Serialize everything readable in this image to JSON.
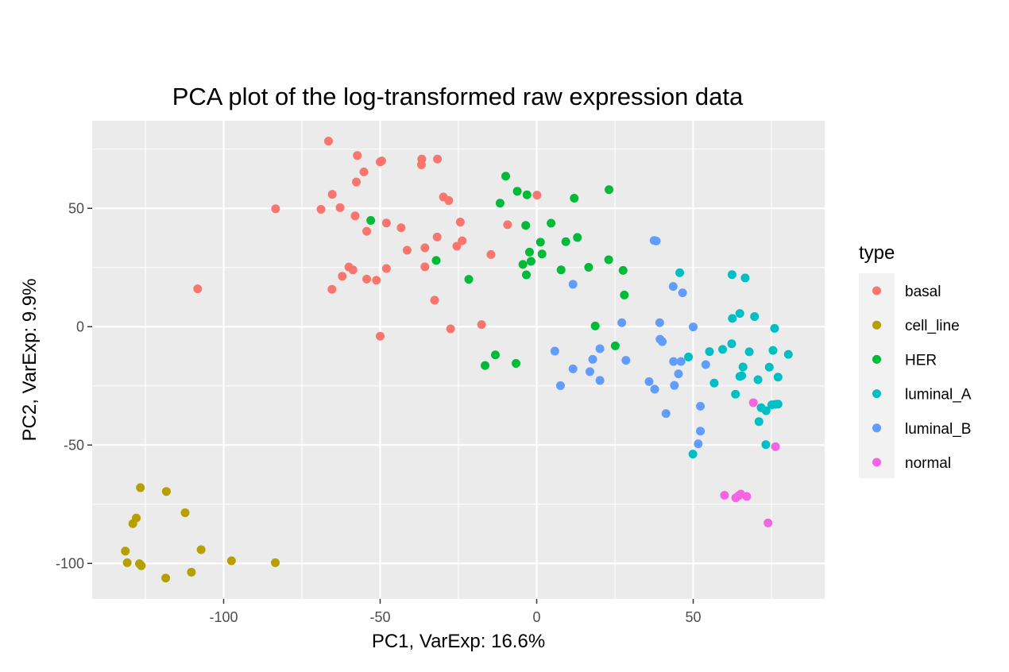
{
  "chart_data": {
    "type": "scatter",
    "title": "PCA plot of the log-transformed raw expression data",
    "xlabel": "PC1, VarExp: 16.6%",
    "ylabel": "PC2, VarExp: 9.9%",
    "xlim": [
      -142,
      92
    ],
    "ylim": [
      -115,
      87
    ],
    "x_ticks": [
      {
        "value": -100,
        "label": "-100"
      },
      {
        "value": -50,
        "label": "-50"
      },
      {
        "value": 0,
        "label": "0"
      },
      {
        "value": 50,
        "label": "50"
      }
    ],
    "y_ticks": [
      {
        "value": -100,
        "label": "-100"
      },
      {
        "value": -50,
        "label": "-50"
      },
      {
        "value": 0,
        "label": "0"
      },
      {
        "value": 50,
        "label": "50"
      }
    ],
    "grid": true,
    "legend": {
      "title": "type",
      "position": "right"
    },
    "series": [
      {
        "name": "basal",
        "color": "#F8766D",
        "points": [
          [
            -66.5,
            78.4
          ],
          [
            -57.3,
            72.3
          ],
          [
            -50.0,
            69.6
          ],
          [
            -49.5,
            70.0
          ],
          [
            -36.7,
            70.8
          ],
          [
            -31.7,
            70.8
          ],
          [
            -36.8,
            68.4
          ],
          [
            -55.2,
            65.4
          ],
          [
            -57.6,
            61.1
          ],
          [
            -65.3,
            55.9
          ],
          [
            -29.8,
            54.8
          ],
          [
            -28.1,
            53.3
          ],
          [
            0.1,
            55.6
          ],
          [
            -83.4,
            49.8
          ],
          [
            -68.9,
            49.6
          ],
          [
            -62.8,
            50.3
          ],
          [
            -58.0,
            46.8
          ],
          [
            -48.0,
            43.8
          ],
          [
            -24.4,
            44.2
          ],
          [
            -9.3,
            43.1
          ],
          [
            -43.3,
            41.8
          ],
          [
            -54.3,
            40.3
          ],
          [
            -31.8,
            37.9
          ],
          [
            -23.8,
            36.3
          ],
          [
            -41.4,
            32.3
          ],
          [
            -35.7,
            33.3
          ],
          [
            -25.5,
            34.0
          ],
          [
            -14.6,
            30.5
          ],
          [
            -35.7,
            25.3
          ],
          [
            -48.0,
            24.6
          ],
          [
            -60.0,
            25.2
          ],
          [
            -58.7,
            24.0
          ],
          [
            -62.1,
            21.3
          ],
          [
            -54.3,
            20.1
          ],
          [
            -51.2,
            19.6
          ],
          [
            -108.3,
            16.0
          ],
          [
            -65.4,
            15.8
          ],
          [
            -32.6,
            11.2
          ],
          [
            -17.6,
            0.9
          ],
          [
            -27.5,
            -0.9
          ],
          [
            -50.0,
            -4.0
          ]
        ]
      },
      {
        "name": "cell_line",
        "color": "#B79F00",
        "points": [
          [
            -126.6,
            -68.0
          ],
          [
            -118.3,
            -69.6
          ],
          [
            -112.3,
            -78.6
          ],
          [
            -127.9,
            -80.8
          ],
          [
            -129.0,
            -83.2
          ],
          [
            -107.2,
            -94.2
          ],
          [
            -131.4,
            -94.8
          ],
          [
            -97.5,
            -98.9
          ],
          [
            -83.5,
            -99.7
          ],
          [
            -130.8,
            -99.7
          ],
          [
            -126.9,
            -100.1
          ],
          [
            -126.3,
            -101.0
          ],
          [
            -110.3,
            -103.7
          ],
          [
            -118.5,
            -106.2
          ]
        ]
      },
      {
        "name": "HER",
        "color": "#00BA38",
        "points": [
          [
            -9.9,
            63.6
          ],
          [
            23.1,
            57.9
          ],
          [
            -6.2,
            57.2
          ],
          [
            -3.1,
            55.7
          ],
          [
            12.0,
            54.3
          ],
          [
            -11.7,
            52.2
          ],
          [
            4.6,
            43.7
          ],
          [
            -3.5,
            42.8
          ],
          [
            13.0,
            37.7
          ],
          [
            1.2,
            35.7
          ],
          [
            9.3,
            35.9
          ],
          [
            -2.3,
            31.5
          ],
          [
            1.7,
            30.7
          ],
          [
            -32.1,
            28.0
          ],
          [
            23.0,
            28.3
          ],
          [
            -1.8,
            27.6
          ],
          [
            -4.4,
            26.3
          ],
          [
            16.6,
            25.1
          ],
          [
            7.8,
            24.0
          ],
          [
            27.6,
            23.8
          ],
          [
            -3.3,
            21.9
          ],
          [
            -21.7,
            20.0
          ],
          [
            -53.0,
            44.9
          ],
          [
            28.0,
            13.4
          ],
          [
            18.7,
            0.3
          ],
          [
            25.1,
            -8.1
          ],
          [
            -13.2,
            -11.9
          ],
          [
            -6.6,
            -15.5
          ],
          [
            -16.5,
            -16.4
          ]
        ]
      },
      {
        "name": "luminal_A",
        "color": "#00BFC4",
        "points": [
          [
            62.4,
            22.0
          ],
          [
            66.6,
            20.6
          ],
          [
            45.7,
            22.8
          ],
          [
            64.9,
            5.6
          ],
          [
            69.6,
            4.3
          ],
          [
            62.5,
            3.5
          ],
          [
            76.0,
            -0.7
          ],
          [
            62.3,
            -7.2
          ],
          [
            59.4,
            -9.6
          ],
          [
            55.2,
            -10.5
          ],
          [
            67.9,
            -10.6
          ],
          [
            75.5,
            -10.0
          ],
          [
            80.4,
            -11.7
          ],
          [
            48.5,
            -12.8
          ],
          [
            65.9,
            -17.0
          ],
          [
            74.3,
            -17.1
          ],
          [
            65.5,
            -20.7
          ],
          [
            64.9,
            -21.0
          ],
          [
            77.1,
            -21.3
          ],
          [
            70.7,
            -22.4
          ],
          [
            56.7,
            -23.8
          ],
          [
            63.5,
            -28.5
          ],
          [
            76.3,
            -32.8
          ],
          [
            75.1,
            -33.0
          ],
          [
            77.1,
            -32.7
          ],
          [
            73.3,
            -35.5
          ],
          [
            71.7,
            -34.2
          ],
          [
            71.0,
            -40.1
          ],
          [
            73.2,
            -49.8
          ],
          [
            49.9,
            -53.8
          ]
        ]
      },
      {
        "name": "luminal_B",
        "color": "#619CFF",
        "points": [
          [
            37.5,
            36.4
          ],
          [
            38.2,
            36.2
          ],
          [
            43.6,
            17.0
          ],
          [
            46.6,
            14.3
          ],
          [
            11.6,
            17.9
          ],
          [
            27.2,
            1.7
          ],
          [
            39.3,
            1.7
          ],
          [
            50.0,
            -0.1
          ],
          [
            39.4,
            -5.3
          ],
          [
            40.1,
            -6.3
          ],
          [
            20.2,
            -9.3
          ],
          [
            5.8,
            -10.3
          ],
          [
            43.7,
            -14.7
          ],
          [
            46.1,
            -14.7
          ],
          [
            28.5,
            -14.2
          ],
          [
            17.9,
            -13.8
          ],
          [
            54.0,
            -16.0
          ],
          [
            11.6,
            -17.8
          ],
          [
            17.0,
            -19.0
          ],
          [
            45.3,
            -19.9
          ],
          [
            20.2,
            -22.7
          ],
          [
            35.9,
            -23.2
          ],
          [
            7.6,
            -24.9
          ],
          [
            37.7,
            -26.4
          ],
          [
            44.0,
            -24.8
          ],
          [
            52.3,
            -33.6
          ],
          [
            41.3,
            -36.7
          ],
          [
            52.3,
            -44.1
          ],
          [
            51.6,
            -49.5
          ]
        ]
      },
      {
        "name": "normal",
        "color": "#F564E3",
        "points": [
          [
            69.2,
            -32.1
          ],
          [
            76.3,
            -50.7
          ],
          [
            60.0,
            -71.2
          ],
          [
            63.6,
            -72.3
          ],
          [
            65.2,
            -70.7
          ],
          [
            64.5,
            -71.4
          ],
          [
            67.1,
            -71.7
          ],
          [
            73.9,
            -82.9
          ]
        ]
      }
    ]
  }
}
